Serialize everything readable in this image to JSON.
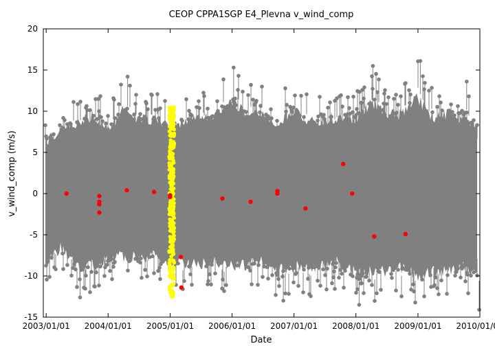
{
  "chart_data": {
    "type": "scatter",
    "title": "CEOP CPPA1SGP E4_Plevna  v_wind_comp",
    "xlabel": "Date",
    "ylabel": "v_wind_comp (m/s)",
    "x_range": [
      "2002/12/15",
      "2010/01/01"
    ],
    "ylim": [
      -15,
      20
    ],
    "y_ticks": [
      "-15",
      "-10",
      "-5",
      "0",
      "5",
      "10",
      "15",
      "20"
    ],
    "x_ticks": [
      "2003/01/01",
      "2004/01/01",
      "2005/01/01",
      "2006/01/01",
      "2007/01/01",
      "2008/01/01",
      "2009/01/01",
      "2010/01/01"
    ],
    "grid": false,
    "legend": "none",
    "colors": {
      "main_series": "#808080",
      "highlight_series": "#ffff00",
      "flagged_points": "#ff0000"
    },
    "series": [
      {
        "color": "#808080",
        "description_values": "continuous hourly series spanning roughly 2002/12/15 to 2010/01/01",
        "typical_range": [
          -8,
          8
        ],
        "extreme_max": 16.1,
        "extreme_min": -14.1,
        "envelope": [
          {
            "x": "2003/01/01",
            "min": -11.5,
            "max": 9.0
          },
          {
            "x": "2003/04/01",
            "min": -9.0,
            "max": 11.0
          },
          {
            "x": "2003/07/01",
            "min": -12.5,
            "max": 12.0
          },
          {
            "x": "2003/10/01",
            "min": -12.0,
            "max": 13.2
          },
          {
            "x": "2004/01/01",
            "min": -11.0,
            "max": 11.0
          },
          {
            "x": "2004/04/01",
            "min": -10.5,
            "max": 14.2
          },
          {
            "x": "2004/07/01",
            "min": -11.0,
            "max": 12.5
          },
          {
            "x": "2004/10/01",
            "min": -10.5,
            "max": 12.5
          },
          {
            "x": "2005/01/01",
            "min": -11.5,
            "max": 11.0
          },
          {
            "x": "2005/04/01",
            "min": -11.8,
            "max": 12.5
          },
          {
            "x": "2005/07/01",
            "min": -12.0,
            "max": 12.3
          },
          {
            "x": "2005/10/01",
            "min": -11.5,
            "max": 13.3
          },
          {
            "x": "2006/01/01",
            "min": -12.2,
            "max": 15.3
          },
          {
            "x": "2006/04/01",
            "min": -12.0,
            "max": 13.5
          },
          {
            "x": "2006/07/01",
            "min": -11.5,
            "max": 13.0
          },
          {
            "x": "2006/10/01",
            "min": -13.0,
            "max": 12.2
          },
          {
            "x": "2007/01/01",
            "min": -12.3,
            "max": 13.8
          },
          {
            "x": "2007/04/01",
            "min": -12.5,
            "max": 12.0
          },
          {
            "x": "2007/07/01",
            "min": -12.0,
            "max": 12.5
          },
          {
            "x": "2007/10/01",
            "min": -11.5,
            "max": 13.0
          },
          {
            "x": "2008/01/01",
            "min": -13.5,
            "max": 12.8
          },
          {
            "x": "2008/04/01",
            "min": -13.2,
            "max": 15.5
          },
          {
            "x": "2008/07/01",
            "min": -13.0,
            "max": 13.5
          },
          {
            "x": "2008/10/01",
            "min": -12.5,
            "max": 13.5
          },
          {
            "x": "2009/01/01",
            "min": -14.0,
            "max": 16.1
          },
          {
            "x": "2009/04/01",
            "min": -13.0,
            "max": 12.5
          },
          {
            "x": "2009/07/01",
            "min": -13.0,
            "max": 13.6
          },
          {
            "x": "2009/10/01",
            "min": -12.0,
            "max": 12.5
          },
          {
            "x": "2010/01/01",
            "min": -14.1,
            "max": 11.0
          }
        ]
      },
      {
        "color": "#ffff00",
        "x_range": [
          "2004/12/26",
          "2005/01/25"
        ],
        "ylim": [
          -12.5,
          10.5
        ]
      },
      {
        "color": "#ff0000",
        "points": [
          {
            "x": "2003/05/01",
            "y": 0.0
          },
          {
            "x": "2003/11/10",
            "y": -0.3
          },
          {
            "x": "2003/11/10",
            "y": -1.0
          },
          {
            "x": "2003/11/10",
            "y": -1.3
          },
          {
            "x": "2003/11/10",
            "y": -2.3
          },
          {
            "x": "2004/04/20",
            "y": 0.4
          },
          {
            "x": "2004/09/28",
            "y": 0.2
          },
          {
            "x": "2005/01/01",
            "y": -0.2
          },
          {
            "x": "2005/01/01",
            "y": -0.4
          },
          {
            "x": "2005/03/05",
            "y": -7.7
          },
          {
            "x": "2005/03/08",
            "y": -11.4
          },
          {
            "x": "2005/11/05",
            "y": -0.6
          },
          {
            "x": "2006/04/20",
            "y": -1.0
          },
          {
            "x": "2006/09/25",
            "y": 0.3
          },
          {
            "x": "2006/09/25",
            "y": 0.0
          },
          {
            "x": "2007/03/10",
            "y": -1.8
          },
          {
            "x": "2007/10/18",
            "y": 3.6
          },
          {
            "x": "2007/12/10",
            "y": 0.0
          },
          {
            "x": "2008/04/18",
            "y": -5.2
          },
          {
            "x": "2008/10/20",
            "y": -4.9
          }
        ]
      }
    ]
  }
}
